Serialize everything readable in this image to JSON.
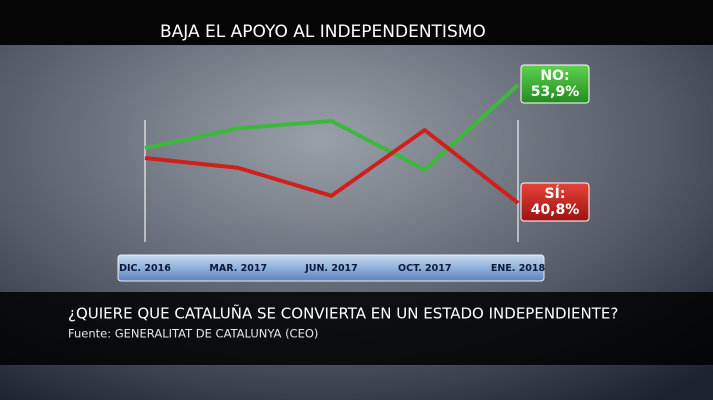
{
  "chart_data": {
    "type": "line",
    "title": "BAJA EL APOYO AL INDEPENDENTISMO",
    "question": "¿QUIERE QUE CATALUÑA SE CONVIERTA EN UN ESTADO INDEPENDIENTE?",
    "source": "Fuente: GENERALITAT DE CATALUNYA (CEO)",
    "categories": [
      "DIC. 2016",
      "MAR. 2017",
      "JUN. 2017",
      "OCT. 2017",
      "ENE. 2018"
    ],
    "series": [
      {
        "name": "NO:",
        "color": "#3cb83a",
        "values": [
          46.9,
          49.1,
          49.9,
          44.5,
          53.9
        ],
        "value_labels": [
          null,
          null,
          null,
          null,
          "53,9%"
        ]
      },
      {
        "name": "SÍ:",
        "color": "#d0201c",
        "values": [
          45.8,
          44.7,
          41.6,
          48.9,
          40.8
        ],
        "value_labels": [
          null,
          null,
          null,
          null,
          "40,8%"
        ]
      }
    ]
  }
}
